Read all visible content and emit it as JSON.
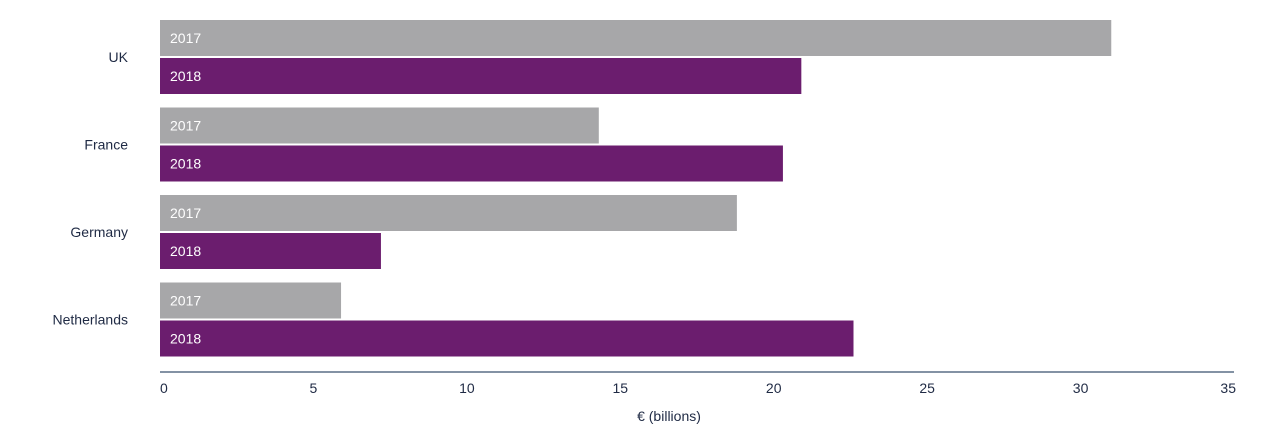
{
  "chart_data": {
    "type": "bar",
    "orientation": "horizontal",
    "categories": [
      "UK",
      "France",
      "Germany",
      "Netherlands"
    ],
    "series": [
      {
        "name": "2017",
        "color": "#a7a7a9",
        "values": [
          31.0,
          14.3,
          18.8,
          5.9
        ]
      },
      {
        "name": "2018",
        "color": "#6b1d6e",
        "values": [
          20.9,
          20.3,
          7.2,
          22.6
        ]
      }
    ],
    "xlabel": "€ (billions)",
    "ylabel": "",
    "xlim": [
      0,
      35
    ],
    "xticks": [
      "0",
      "5",
      "10",
      "15",
      "20",
      "25",
      "30",
      "35"
    ],
    "grid": false,
    "legend": "none",
    "axis_color": "#5a6f86"
  }
}
